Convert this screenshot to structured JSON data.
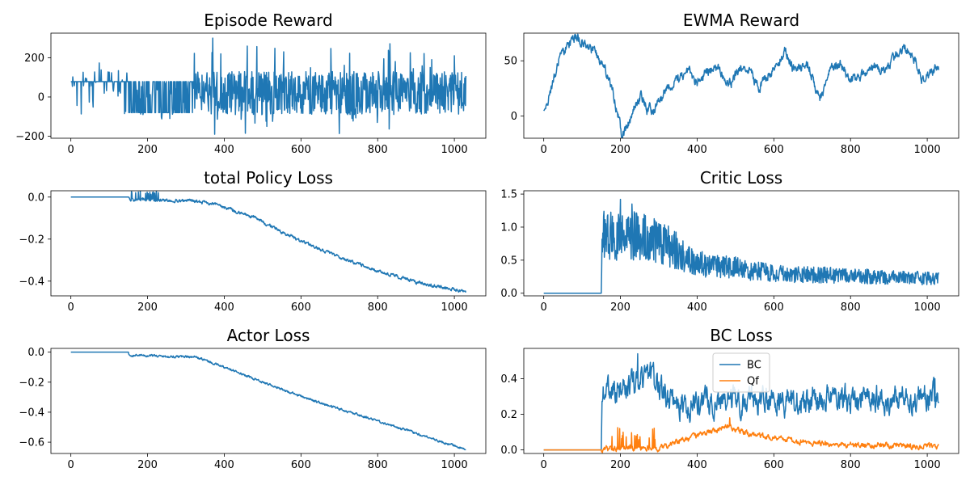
{
  "figure": {
    "background": "#ffffff"
  },
  "colors": {
    "series_blue": "#1f77b4",
    "series_orange": "#ff7f0e",
    "axis": "#000000"
  },
  "chart_data": [
    {
      "id": "episode-reward",
      "type": "line",
      "title": "Episode Reward",
      "xlabel": "",
      "ylabel": "",
      "grid": false,
      "xlim": [
        -52,
        1082
      ],
      "ylim": [
        -210,
        325
      ],
      "xticks": [
        0,
        200,
        400,
        600,
        800,
        1000
      ],
      "xtick_labels": [
        "0",
        "200",
        "400",
        "600",
        "800",
        "1000"
      ],
      "yticks": [
        -200,
        0,
        200
      ],
      "ytick_labels": [
        "−200",
        "0",
        "200"
      ],
      "series": [
        {
          "color": "#1f77b4",
          "n": 1030,
          "segments": [
            {
              "x0": 0,
              "x1": 150,
              "center": 78,
              "amp": 60,
              "spike_prob": 0.22,
              "spike_low": -95,
              "spike_high": 175
            },
            {
              "x0": 150,
              "x1": 320,
              "center": -20,
              "amp": 95,
              "spike_prob": 0.35,
              "spike_low": -85,
              "spike_high": 80
            },
            {
              "x0": 320,
              "x1": 1030,
              "center": 20,
              "amp": 110,
              "spike_prob": 0.08,
              "spike_low": -190,
              "spike_high": 300
            }
          ],
          "peaks": [
            {
              "x": 370,
              "y": 300
            },
            {
              "x": 375,
              "y": -190
            },
            {
              "x": 455,
              "y": -185
            },
            {
              "x": 555,
              "y": 230
            },
            {
              "x": 885,
              "y": 225
            },
            {
              "x": 1000,
              "y": 210
            }
          ]
        }
      ]
    },
    {
      "id": "ewma-reward",
      "type": "line",
      "title": "EWMA Reward",
      "xlabel": "",
      "ylabel": "",
      "grid": false,
      "xlim": [
        -52,
        1082
      ],
      "ylim": [
        -20,
        75
      ],
      "xticks": [
        0,
        200,
        400,
        600,
        800,
        1000
      ],
      "xtick_labels": [
        "0",
        "200",
        "400",
        "600",
        "800",
        "1000"
      ],
      "yticks": [
        0,
        50
      ],
      "ytick_labels": [
        "0",
        "50"
      ],
      "series": [
        {
          "color": "#1f77b4",
          "n": 1030,
          "noise": 3.5,
          "anchors": [
            [
              0,
              3
            ],
            [
              15,
              20
            ],
            [
              40,
              50
            ],
            [
              60,
              63
            ],
            [
              80,
              70
            ],
            [
              100,
              68
            ],
            [
              120,
              60
            ],
            [
              140,
              55
            ],
            [
              160,
              43
            ],
            [
              185,
              15
            ],
            [
              205,
              -18
            ],
            [
              215,
              -12
            ],
            [
              240,
              10
            ],
            [
              255,
              20
            ],
            [
              270,
              5
            ],
            [
              290,
              8
            ],
            [
              320,
              25
            ],
            [
              350,
              35
            ],
            [
              380,
              40
            ],
            [
              400,
              30
            ],
            [
              420,
              40
            ],
            [
              450,
              45
            ],
            [
              470,
              35
            ],
            [
              490,
              30
            ],
            [
              510,
              45
            ],
            [
              535,
              42
            ],
            [
              560,
              25
            ],
            [
              590,
              40
            ],
            [
              615,
              50
            ],
            [
              630,
              60
            ],
            [
              650,
              42
            ],
            [
              690,
              47
            ],
            [
              720,
              15
            ],
            [
              745,
              40
            ],
            [
              775,
              48
            ],
            [
              800,
              30
            ],
            [
              830,
              38
            ],
            [
              860,
              45
            ],
            [
              890,
              40
            ],
            [
              920,
              55
            ],
            [
              945,
              62
            ],
            [
              970,
              50
            ],
            [
              990,
              30
            ],
            [
              1005,
              38
            ],
            [
              1030,
              45
            ]
          ]
        }
      ]
    },
    {
      "id": "total-policy-loss",
      "type": "line",
      "title": "total Policy Loss",
      "xlabel": "",
      "ylabel": "",
      "grid": false,
      "xlim": [
        -52,
        1082
      ],
      "ylim": [
        -0.47,
        0.03
      ],
      "xticks": [
        0,
        200,
        400,
        600,
        800,
        1000
      ],
      "xtick_labels": [
        "0",
        "200",
        "400",
        "600",
        "800",
        "1000"
      ],
      "yticks": [
        0.0,
        -0.2,
        -0.4
      ],
      "ytick_labels": [
        "0.0",
        "−0.2",
        "−0.4"
      ],
      "series": [
        {
          "color": "#1f77b4",
          "n": 1030,
          "anchors": [
            [
              0,
              0.0
            ],
            [
              150,
              0.0
            ],
            [
              152,
              -0.012
            ],
            [
              330,
              -0.02
            ],
            [
              400,
              -0.045
            ],
            [
              480,
              -0.1
            ],
            [
              560,
              -0.175
            ],
            [
              640,
              -0.24
            ],
            [
              720,
              -0.3
            ],
            [
              800,
              -0.35
            ],
            [
              900,
              -0.405
            ],
            [
              1030,
              -0.45
            ]
          ],
          "noise": 0.006,
          "spikes": [
            {
              "x0": 152,
              "x1": 240,
              "high": 0.03,
              "prob": 0.2
            }
          ]
        }
      ]
    },
    {
      "id": "critic-loss",
      "type": "line",
      "title": "Critic Loss",
      "xlabel": "",
      "ylabel": "",
      "grid": false,
      "xlim": [
        -52,
        1082
      ],
      "ylim": [
        -0.04,
        1.55
      ],
      "xticks": [
        0,
        200,
        400,
        600,
        800,
        1000
      ],
      "xtick_labels": [
        "0",
        "200",
        "400",
        "600",
        "800",
        "1000"
      ],
      "yticks": [
        0.0,
        0.5,
        1.0,
        1.5
      ],
      "ytick_labels": [
        "0.0",
        "0.5",
        "1.0",
        "1.5"
      ],
      "series": [
        {
          "color": "#1f77b4",
          "n": 1030,
          "anchors": [
            [
              0,
              0.0
            ],
            [
              150,
              0.0
            ],
            [
              152,
              0.9
            ],
            [
              250,
              0.85
            ],
            [
              330,
              0.7
            ],
            [
              400,
              0.45
            ],
            [
              500,
              0.38
            ],
            [
              600,
              0.3
            ],
            [
              800,
              0.26
            ],
            [
              1030,
              0.22
            ]
          ],
          "noise_rel": 0.45,
          "peaks": [
            {
              "x": 200,
              "y": 1.42
            },
            {
              "x": 230,
              "y": 1.35
            },
            {
              "x": 170,
              "y": 0.62
            }
          ]
        }
      ]
    },
    {
      "id": "actor-loss",
      "type": "line",
      "title": "Actor Loss",
      "xlabel": "",
      "ylabel": "",
      "grid": false,
      "xlim": [
        -52,
        1082
      ],
      "ylim": [
        -0.675,
        0.025
      ],
      "xticks": [
        0,
        200,
        400,
        600,
        800,
        1000
      ],
      "xtick_labels": [
        "0",
        "200",
        "400",
        "600",
        "800",
        "1000"
      ],
      "yticks": [
        0.0,
        -0.2,
        -0.4,
        -0.6
      ],
      "ytick_labels": [
        "0.0",
        "−0.2",
        "−0.4",
        "−0.6"
      ],
      "series": [
        {
          "color": "#1f77b4",
          "n": 1030,
          "anchors": [
            [
              0,
              0.0
            ],
            [
              150,
              0.0
            ],
            [
              152,
              -0.02
            ],
            [
              330,
              -0.035
            ],
            [
              400,
              -0.1
            ],
            [
              500,
              -0.2
            ],
            [
              600,
              -0.295
            ],
            [
              700,
              -0.38
            ],
            [
              800,
              -0.46
            ],
            [
              900,
              -0.54
            ],
            [
              1030,
              -0.65
            ]
          ],
          "noise": 0.006
        }
      ]
    },
    {
      "id": "bc-loss",
      "type": "line",
      "title": "BC Loss",
      "xlabel": "",
      "ylabel": "",
      "grid": false,
      "xlim": [
        -52,
        1082
      ],
      "ylim": [
        -0.02,
        0.57
      ],
      "xticks": [
        0,
        200,
        400,
        600,
        800,
        1000
      ],
      "xtick_labels": [
        "0",
        "200",
        "400",
        "600",
        "800",
        "1000"
      ],
      "yticks": [
        0.0,
        0.2,
        0.4
      ],
      "ytick_labels": [
        "0.0",
        "0.2",
        "0.4"
      ],
      "legend": {
        "position": "top-center",
        "entries": [
          "BC",
          "Qf"
        ]
      },
      "series": [
        {
          "name": "BC",
          "color": "#1f77b4",
          "n": 1030,
          "anchors": [
            [
              0,
              0.0
            ],
            [
              150,
              0.0
            ],
            [
              152,
              0.33
            ],
            [
              200,
              0.33
            ],
            [
              240,
              0.38
            ],
            [
              270,
              0.42
            ],
            [
              300,
              0.34
            ],
            [
              340,
              0.26
            ],
            [
              500,
              0.27
            ],
            [
              700,
              0.28
            ],
            [
              1030,
              0.3
            ]
          ],
          "noise": 0.055,
          "peaks": [
            {
              "x": 245,
              "y": 0.54
            },
            {
              "x": 1020,
              "y": 0.4
            }
          ]
        },
        {
          "name": "Qf",
          "color": "#ff7f0e",
          "n": 1030,
          "anchors": [
            [
              0,
              0.0
            ],
            [
              150,
              0.0
            ],
            [
              160,
              0.01
            ],
            [
              300,
              0.01
            ],
            [
              340,
              0.04
            ],
            [
              400,
              0.08
            ],
            [
              480,
              0.13
            ],
            [
              520,
              0.1
            ],
            [
              580,
              0.07
            ],
            [
              700,
              0.04
            ],
            [
              850,
              0.025
            ],
            [
              1030,
              0.02
            ]
          ],
          "noise": 0.012,
          "spikes": [
            {
              "x0": 150,
              "x1": 300,
              "high": 0.13,
              "prob": 0.08
            }
          ],
          "peaks": [
            {
              "x": 485,
              "y": 0.18
            }
          ]
        }
      ]
    }
  ]
}
